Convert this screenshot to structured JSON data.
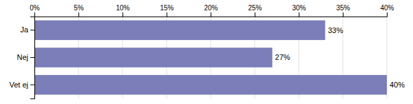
{
  "chart_data": {
    "type": "bar",
    "orientation": "horizontal",
    "categories": [
      "Ja",
      "Nej",
      "Vet ej"
    ],
    "values": [
      33,
      27,
      40
    ],
    "value_labels": [
      "33%",
      "27%",
      "40%"
    ],
    "data_labels": true,
    "color": "#7b7eb8",
    "xlim": [
      0,
      40
    ],
    "xticks": [
      {
        "value": 0,
        "label": "0%"
      },
      {
        "value": 5,
        "label": "5%"
      },
      {
        "value": 10,
        "label": "10%"
      },
      {
        "value": 15,
        "label": "15%"
      },
      {
        "value": 20,
        "label": "20%"
      },
      {
        "value": 25,
        "label": "25%"
      },
      {
        "value": 30,
        "label": "30%"
      },
      {
        "value": 35,
        "label": "35%"
      },
      {
        "value": 40,
        "label": "40%"
      }
    ],
    "grid": true
  }
}
